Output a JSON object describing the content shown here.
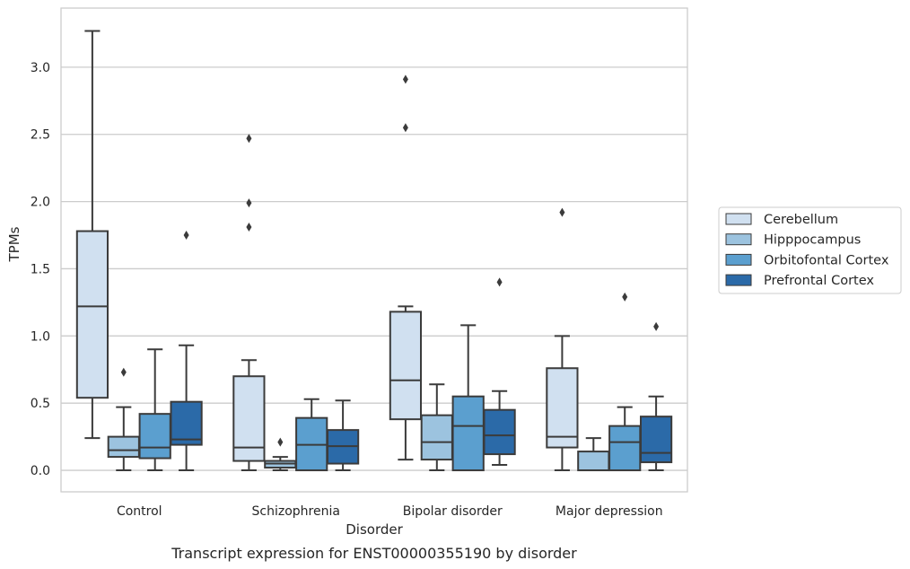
{
  "chart_data": {
    "type": "box",
    "caption": "Transcript expression for ENST00000355190 by disorder",
    "xlabel": "Disorder",
    "ylabel": "TPMs",
    "ylim": [
      -0.16,
      3.44
    ],
    "yticks": [
      0.0,
      0.5,
      1.0,
      1.5,
      2.0,
      2.5,
      3.0
    ],
    "ytick_labels": [
      "0.0",
      "0.5",
      "1.0",
      "1.5",
      "2.0",
      "2.5",
      "3.0"
    ],
    "grid": "horizontal",
    "legend_position": "right",
    "categories": [
      "Control",
      "Schizophrenia",
      "Bipolar disorder",
      "Major depression"
    ],
    "series": [
      {
        "name": "Cerebellum",
        "color": "#d0e0f0",
        "boxes": [
          {
            "whislo": 0.24,
            "q1": 0.54,
            "med": 1.22,
            "q3": 1.78,
            "whishi": 3.27,
            "fliers": []
          },
          {
            "whislo": 0.0,
            "q1": 0.07,
            "med": 0.17,
            "q3": 0.7,
            "whishi": 0.82,
            "fliers": [
              1.81,
              1.99,
              2.47
            ]
          },
          {
            "whislo": 0.08,
            "q1": 0.38,
            "med": 0.67,
            "q3": 1.18,
            "whishi": 1.22,
            "fliers": [
              2.55,
              2.91
            ]
          },
          {
            "whislo": 0.0,
            "q1": 0.17,
            "med": 0.25,
            "q3": 0.76,
            "whishi": 1.0,
            "fliers": [
              1.92
            ]
          }
        ]
      },
      {
        "name": "Hipppocampus",
        "color": "#9cc3df",
        "boxes": [
          {
            "whislo": 0.0,
            "q1": 0.1,
            "med": 0.15,
            "q3": 0.25,
            "whishi": 0.47,
            "fliers": [
              0.73
            ]
          },
          {
            "whislo": 0.0,
            "q1": 0.02,
            "med": 0.05,
            "q3": 0.07,
            "whishi": 0.1,
            "fliers": [
              0.21
            ]
          },
          {
            "whislo": 0.0,
            "q1": 0.08,
            "med": 0.21,
            "q3": 0.41,
            "whishi": 0.64,
            "fliers": []
          },
          {
            "whislo": 0.0,
            "q1": 0.0,
            "med": 0.0,
            "q3": 0.14,
            "whishi": 0.24,
            "fliers": []
          }
        ]
      },
      {
        "name": "Orbitofontal Cortex",
        "color": "#5b9fcf",
        "boxes": [
          {
            "whislo": 0.0,
            "q1": 0.09,
            "med": 0.17,
            "q3": 0.42,
            "whishi": 0.9,
            "fliers": []
          },
          {
            "whislo": 0.0,
            "q1": 0.0,
            "med": 0.19,
            "q3": 0.39,
            "whishi": 0.53,
            "fliers": []
          },
          {
            "whislo": 0.0,
            "q1": 0.0,
            "med": 0.33,
            "q3": 0.55,
            "whishi": 1.08,
            "fliers": []
          },
          {
            "whislo": 0.0,
            "q1": 0.0,
            "med": 0.21,
            "q3": 0.33,
            "whishi": 0.47,
            "fliers": [
              1.29
            ]
          }
        ]
      },
      {
        "name": "Prefrontal Cortex",
        "color": "#2b6aa8",
        "boxes": [
          {
            "whislo": 0.0,
            "q1": 0.19,
            "med": 0.23,
            "q3": 0.51,
            "whishi": 0.93,
            "fliers": [
              1.75
            ]
          },
          {
            "whislo": 0.0,
            "q1": 0.05,
            "med": 0.18,
            "q3": 0.3,
            "whishi": 0.52,
            "fliers": []
          },
          {
            "whislo": 0.04,
            "q1": 0.12,
            "med": 0.26,
            "q3": 0.45,
            "whishi": 0.59,
            "fliers": [
              1.4
            ]
          },
          {
            "whislo": 0.0,
            "q1": 0.06,
            "med": 0.13,
            "q3": 0.4,
            "whishi": 0.55,
            "fliers": [
              1.07
            ]
          }
        ]
      }
    ]
  }
}
